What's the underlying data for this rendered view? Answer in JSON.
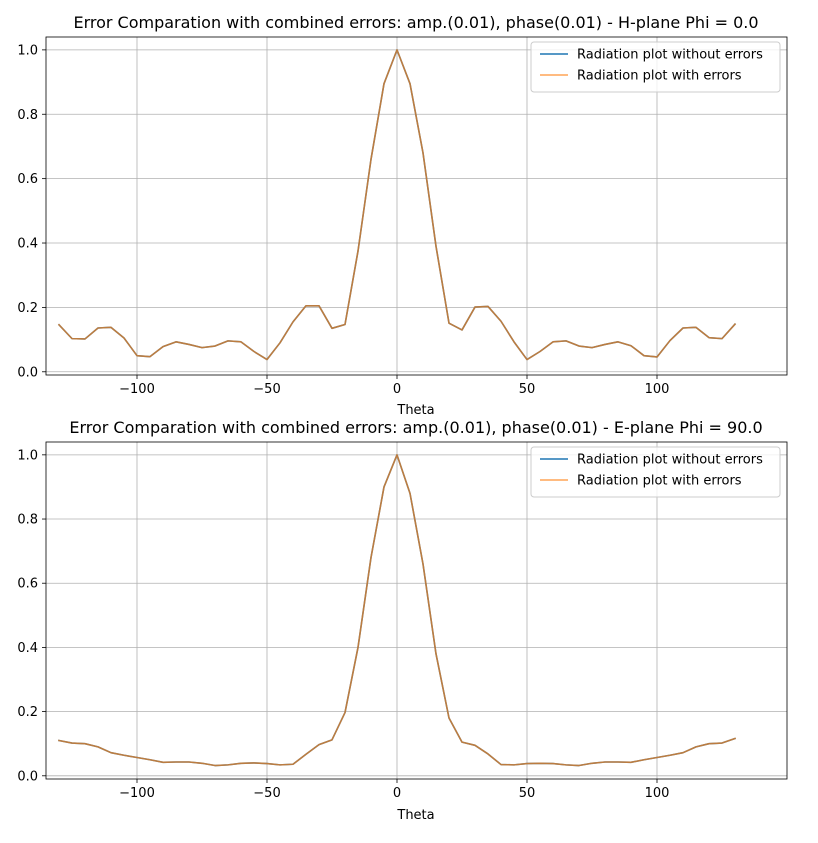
{
  "chart_data": [
    {
      "type": "line",
      "title": "Error Comparation with combined errors: amp.(0.01), phase(0.01) - H-plane Phi = 0.0",
      "xlabel": "Theta",
      "ylabel": "",
      "xlim": [
        -135,
        150
      ],
      "ylim": [
        -0.01,
        1.04
      ],
      "xticks": [
        -100,
        -50,
        0,
        50,
        100
      ],
      "yticks": [
        0.0,
        0.2,
        0.4,
        0.6,
        0.8,
        1.0
      ],
      "xtick_labels": [
        "−100",
        "−50",
        "0",
        "50",
        "100"
      ],
      "ytick_labels": [
        "0.0",
        "0.2",
        "0.4",
        "0.6",
        "0.8",
        "1.0"
      ],
      "grid": true,
      "legend": "top-right",
      "x": [
        -130,
        -125,
        -120,
        -115,
        -110,
        -105,
        -100,
        -95,
        -90,
        -85,
        -80,
        -75,
        -70,
        -65,
        -60,
        -55,
        -50,
        -45,
        -40,
        -35,
        -30,
        -25,
        -20,
        -15,
        -10,
        -5,
        0,
        5,
        10,
        15,
        20,
        25,
        30,
        35,
        40,
        45,
        50,
        55,
        60,
        65,
        70,
        75,
        80,
        85,
        90,
        95,
        100,
        105,
        110,
        115,
        120,
        125,
        130
      ],
      "series": [
        {
          "name": "Radiation plot without errors",
          "color": "#1f77b4",
          "values": [
            0.146,
            0.103,
            0.102,
            0.136,
            0.138,
            0.105,
            0.05,
            0.047,
            0.078,
            0.093,
            0.085,
            0.075,
            0.08,
            0.096,
            0.093,
            0.063,
            0.038,
            0.09,
            0.155,
            0.205,
            0.205,
            0.135,
            0.147,
            0.375,
            0.66,
            0.895,
            1.0,
            0.895,
            0.68,
            0.39,
            0.151,
            0.13,
            0.201,
            0.203,
            0.157,
            0.093,
            0.038,
            0.063,
            0.093,
            0.096,
            0.08,
            0.075,
            0.085,
            0.093,
            0.081,
            0.05,
            0.046,
            0.097,
            0.136,
            0.138,
            0.106,
            0.103,
            0.148
          ]
        },
        {
          "name": "Radiation plot with errors",
          "color": "#ff7f0e",
          "values": [
            0.146,
            0.103,
            0.102,
            0.136,
            0.138,
            0.105,
            0.05,
            0.047,
            0.078,
            0.093,
            0.085,
            0.075,
            0.08,
            0.096,
            0.093,
            0.063,
            0.038,
            0.09,
            0.155,
            0.205,
            0.205,
            0.135,
            0.147,
            0.375,
            0.66,
            0.895,
            1.0,
            0.895,
            0.68,
            0.39,
            0.151,
            0.13,
            0.201,
            0.203,
            0.157,
            0.093,
            0.038,
            0.063,
            0.093,
            0.096,
            0.08,
            0.075,
            0.085,
            0.093,
            0.081,
            0.05,
            0.046,
            0.097,
            0.136,
            0.138,
            0.106,
            0.103,
            0.148
          ]
        }
      ]
    },
    {
      "type": "line",
      "title": "Error Comparation with combined errors: amp.(0.01), phase(0.01) - E-plane Phi = 90.0",
      "xlabel": "Theta",
      "ylabel": "",
      "xlim": [
        -135,
        150
      ],
      "ylim": [
        -0.01,
        1.04
      ],
      "xticks": [
        -100,
        -50,
        0,
        50,
        100
      ],
      "yticks": [
        0.0,
        0.2,
        0.4,
        0.6,
        0.8,
        1.0
      ],
      "xtick_labels": [
        "−100",
        "−50",
        "0",
        "50",
        "100"
      ],
      "ytick_labels": [
        "0.0",
        "0.2",
        "0.4",
        "0.6",
        "0.8",
        "1.0"
      ],
      "grid": true,
      "legend": "top-right",
      "x": [
        -130,
        -125,
        -120,
        -115,
        -110,
        -105,
        -100,
        -95,
        -90,
        -85,
        -80,
        -75,
        -70,
        -65,
        -60,
        -55,
        -50,
        -45,
        -40,
        -35,
        -30,
        -25,
        -20,
        -15,
        -10,
        -5,
        0,
        5,
        10,
        15,
        20,
        25,
        30,
        35,
        40,
        45,
        50,
        55,
        60,
        65,
        70,
        75,
        80,
        85,
        90,
        95,
        100,
        105,
        110,
        115,
        120,
        125,
        130
      ],
      "series": [
        {
          "name": "Radiation plot without errors",
          "color": "#1f77b4",
          "values": [
            0.11,
            0.102,
            0.1,
            0.09,
            0.072,
            0.064,
            0.057,
            0.05,
            0.042,
            0.043,
            0.043,
            0.039,
            0.032,
            0.034,
            0.039,
            0.04,
            0.038,
            0.034,
            0.036,
            0.067,
            0.097,
            0.112,
            0.197,
            0.4,
            0.68,
            0.9,
            1.0,
            0.88,
            0.66,
            0.38,
            0.18,
            0.105,
            0.095,
            0.068,
            0.035,
            0.034,
            0.038,
            0.039,
            0.038,
            0.034,
            0.032,
            0.039,
            0.043,
            0.043,
            0.042,
            0.05,
            0.057,
            0.064,
            0.072,
            0.09,
            0.1,
            0.102,
            0.116
          ]
        },
        {
          "name": "Radiation plot with errors",
          "color": "#ff7f0e",
          "values": [
            0.11,
            0.102,
            0.1,
            0.09,
            0.072,
            0.064,
            0.057,
            0.05,
            0.042,
            0.043,
            0.043,
            0.039,
            0.032,
            0.034,
            0.039,
            0.04,
            0.038,
            0.034,
            0.036,
            0.067,
            0.097,
            0.112,
            0.197,
            0.4,
            0.68,
            0.9,
            1.0,
            0.88,
            0.66,
            0.38,
            0.18,
            0.105,
            0.095,
            0.068,
            0.035,
            0.034,
            0.038,
            0.039,
            0.038,
            0.034,
            0.032,
            0.039,
            0.043,
            0.043,
            0.042,
            0.05,
            0.057,
            0.064,
            0.072,
            0.09,
            0.1,
            0.102,
            0.116
          ]
        }
      ]
    }
  ]
}
